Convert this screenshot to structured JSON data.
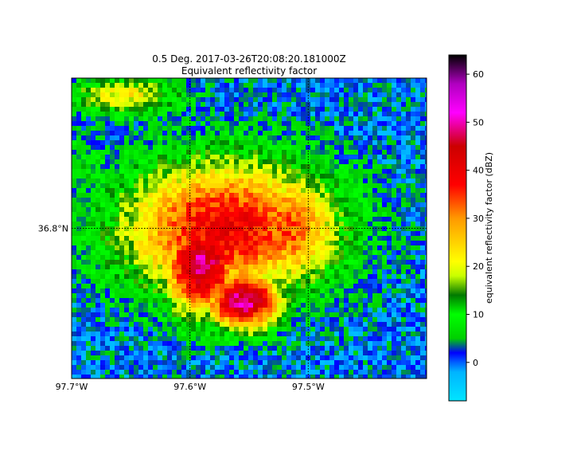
{
  "chart_data": {
    "type": "heatmap",
    "title_line1": "0.5 Deg. 2017-03-26T20:08:20.181000Z",
    "title_line2": "Equivalent reflectivity factor",
    "x_ticks": [
      {
        "value": -97.7,
        "label": "97.7°W"
      },
      {
        "value": -97.6,
        "label": "97.6°W"
      },
      {
        "value": -97.5,
        "label": "97.5°W"
      }
    ],
    "y_ticks": [
      {
        "value": 36.8,
        "label": "36.8°N"
      }
    ],
    "lon_range": [
      -97.7,
      -97.4
    ],
    "lat_range": [
      36.675,
      36.925
    ],
    "grid": "dotted",
    "colorbar": {
      "label": "equivalent reflectivity factor (dBZ)",
      "range": [
        -8,
        64
      ],
      "ticks": [
        0,
        10,
        20,
        30,
        40,
        50,
        60
      ],
      "tick_labels": [
        "0",
        "10",
        "20",
        "30",
        "40",
        "50",
        "60"
      ],
      "stops": [
        {
          "v": -8,
          "color": "#00e5ff"
        },
        {
          "v": -2,
          "color": "#00b4ff"
        },
        {
          "v": 0,
          "color": "#0060ff"
        },
        {
          "v": 2,
          "color": "#0000ff"
        },
        {
          "v": 5,
          "color": "#00d000"
        },
        {
          "v": 10,
          "color": "#00ff00"
        },
        {
          "v": 14,
          "color": "#007a00"
        },
        {
          "v": 18,
          "color": "#c8ff00"
        },
        {
          "v": 21,
          "color": "#ffff00"
        },
        {
          "v": 30,
          "color": "#ff9900"
        },
        {
          "v": 37,
          "color": "#ff0000"
        },
        {
          "v": 45,
          "color": "#cc0000"
        },
        {
          "v": 52,
          "color": "#ff00ff"
        },
        {
          "v": 58,
          "color": "#b000c0"
        },
        {
          "v": 64,
          "color": "#000000"
        }
      ]
    },
    "field": {
      "description_free": true,
      "background_dbz": 1,
      "cells": [
        {
          "lon": -97.655,
          "lat": 36.91,
          "dbz": 22,
          "rlon": 0.06,
          "rlat": 0.02
        },
        {
          "lon": -97.69,
          "lat": 36.85,
          "dbz": 9,
          "rlon": 0.03,
          "rlat": 0.04
        },
        {
          "lon": -97.57,
          "lat": 36.8,
          "dbz": 40,
          "rlon": 0.11,
          "rlat": 0.07
        },
        {
          "lon": -97.59,
          "lat": 36.77,
          "dbz": 49,
          "rlon": 0.04,
          "rlat": 0.05
        },
        {
          "lon": -97.555,
          "lat": 36.74,
          "dbz": 50,
          "rlon": 0.04,
          "rlat": 0.03
        },
        {
          "lon": -97.52,
          "lat": 36.8,
          "dbz": 34,
          "rlon": 0.06,
          "rlat": 0.06
        }
      ]
    }
  }
}
